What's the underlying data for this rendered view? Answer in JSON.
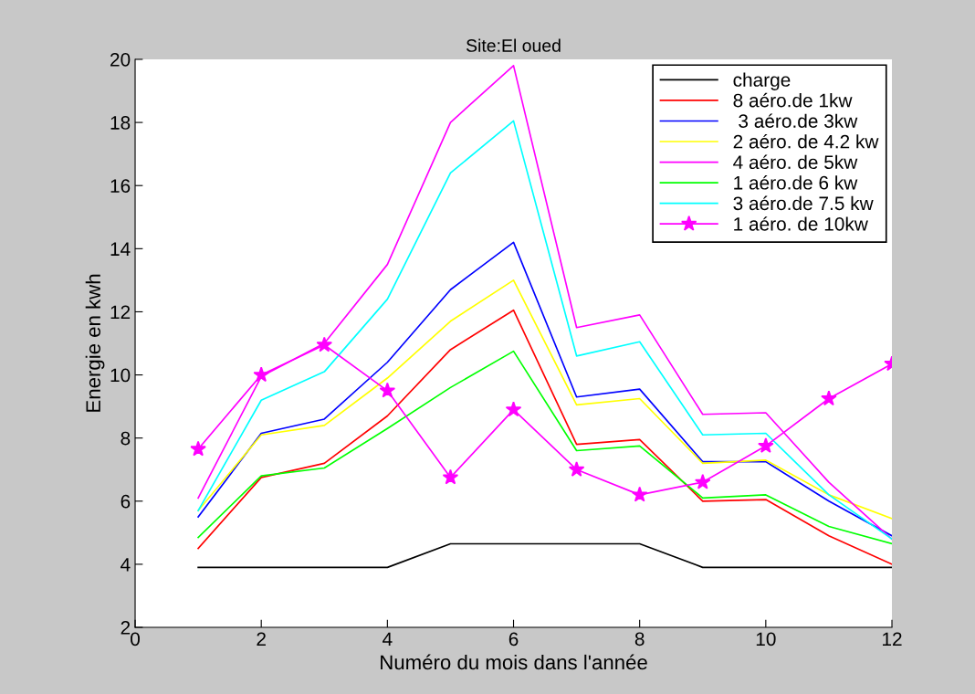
{
  "chart_data": {
    "type": "line",
    "title": "Site:El oued",
    "xlabel": "Numéro du mois dans l'année",
    "ylabel": "Energie en kwh",
    "x": [
      1,
      2,
      3,
      4,
      5,
      6,
      7,
      8,
      9,
      10,
      11,
      12
    ],
    "xlim": [
      0,
      12
    ],
    "xticks": [
      0,
      2,
      4,
      6,
      8,
      10,
      12
    ],
    "ylim": [
      2,
      20
    ],
    "yticks": [
      2,
      4,
      6,
      8,
      10,
      12,
      14,
      16,
      18,
      20
    ],
    "grid": false,
    "legend": "top right",
    "marker": "none",
    "line_style": "solid",
    "series": [
      {
        "name": "charge",
        "color": "#000000",
        "values": [
          3.9,
          3.9,
          3.9,
          3.9,
          4.65,
          4.65,
          4.65,
          4.65,
          3.9,
          3.9,
          3.9,
          3.9
        ]
      },
      {
        "name": "8 aéro.de 1kw",
        "color": "#ff0000",
        "values": [
          4.5,
          6.75,
          7.2,
          8.7,
          10.8,
          12.05,
          7.8,
          7.95,
          6.0,
          6.05,
          4.9,
          4.0
        ]
      },
      {
        "name": " 3 aéro.de 3kw",
        "color": "#0000ff",
        "values": [
          5.5,
          8.15,
          8.6,
          10.4,
          12.7,
          14.2,
          9.3,
          9.55,
          7.25,
          7.25,
          6.0,
          4.9
        ]
      },
      {
        "name": "2 aéro. de 4.2 kw",
        "color": "#ffff00",
        "values": [
          5.7,
          8.1,
          8.4,
          9.9,
          11.7,
          13.0,
          9.05,
          9.25,
          7.2,
          7.3,
          6.2,
          5.45
        ]
      },
      {
        "name": "4 aéro. de 5kw",
        "color": "#ff00ff",
        "values": [
          6.1,
          9.95,
          11.0,
          13.5,
          18.0,
          19.8,
          11.5,
          11.9,
          8.75,
          8.8,
          6.6,
          4.8
        ]
      },
      {
        "name": "1 aéro.de 6 kw",
        "color": "#00ff00",
        "values": [
          4.85,
          6.8,
          7.05,
          8.3,
          9.6,
          10.75,
          7.6,
          7.75,
          6.1,
          6.2,
          5.2,
          4.65
        ]
      },
      {
        "name": "3 aéro.de 7.5 kw",
        "color": "#00ffff",
        "values": [
          5.7,
          9.2,
          10.1,
          12.4,
          16.4,
          18.05,
          10.6,
          11.05,
          8.1,
          8.15,
          6.2,
          4.8
        ]
      },
      {
        "name": "1 aéro. de 10kw",
        "color": "#ff00ff",
        "marker": "star",
        "values": [
          7.65,
          10.0,
          10.95,
          9.5,
          6.75,
          8.9,
          7.0,
          6.2,
          6.6,
          7.75,
          9.25,
          10.35
        ]
      }
    ]
  }
}
